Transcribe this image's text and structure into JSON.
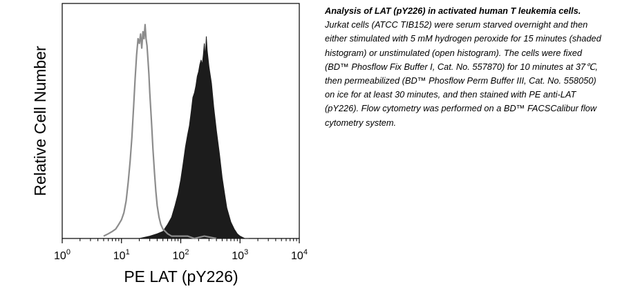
{
  "chart_data": {
    "type": "histogram",
    "title": "",
    "xlabel": "PE LAT (pY226)",
    "ylabel": "Relative Cell Number",
    "x_scale": "log",
    "xlim": [
      1,
      10000
    ],
    "ylim": [
      0,
      1.0
    ],
    "x_ticks": [
      {
        "value": 1,
        "base": "10",
        "exp": "0"
      },
      {
        "value": 10,
        "base": "10",
        "exp": "1"
      },
      {
        "value": 100,
        "base": "10",
        "exp": "2"
      },
      {
        "value": 1000,
        "base": "10",
        "exp": "3"
      },
      {
        "value": 10000,
        "base": "10",
        "exp": "4"
      }
    ],
    "grid": false,
    "legend": "none",
    "series": [
      {
        "style": "open",
        "color": "#8c8c8c",
        "x": [
          5,
          6,
          7,
          8,
          9,
          10,
          11,
          12,
          13,
          14,
          15,
          16,
          17,
          18,
          19,
          20,
          21,
          22,
          23,
          24,
          25,
          26,
          27,
          28,
          29,
          30,
          32,
          34,
          36,
          38,
          40,
          43,
          46,
          50,
          55,
          60,
          70,
          80,
          100,
          130,
          170,
          250,
          400
        ],
        "y": [
          0.01,
          0.02,
          0.03,
          0.04,
          0.06,
          0.08,
          0.11,
          0.16,
          0.24,
          0.33,
          0.43,
          0.56,
          0.68,
          0.78,
          0.85,
          0.83,
          0.87,
          0.81,
          0.88,
          0.85,
          0.91,
          0.85,
          0.82,
          0.76,
          0.7,
          0.62,
          0.5,
          0.38,
          0.28,
          0.2,
          0.14,
          0.09,
          0.06,
          0.04,
          0.03,
          0.02,
          0.01,
          0.01,
          0.01,
          0.01,
          0.0,
          0.01,
          0.0
        ]
      },
      {
        "style": "filled",
        "color": "#1c1c1c",
        "x": [
          20,
          30,
          40,
          50,
          60,
          70,
          80,
          90,
          100,
          110,
          120,
          130,
          140,
          150,
          160,
          170,
          180,
          190,
          200,
          210,
          220,
          230,
          240,
          250,
          260,
          270,
          280,
          300,
          330,
          360,
          400,
          450,
          500,
          550,
          600,
          700,
          800,
          900,
          1000,
          1200,
          1400
        ],
        "y": [
          0.0,
          0.01,
          0.02,
          0.03,
          0.06,
          0.09,
          0.14,
          0.19,
          0.25,
          0.32,
          0.39,
          0.44,
          0.48,
          0.54,
          0.6,
          0.62,
          0.65,
          0.69,
          0.71,
          0.74,
          0.76,
          0.74,
          0.78,
          0.83,
          0.77,
          0.86,
          0.8,
          0.73,
          0.66,
          0.56,
          0.46,
          0.36,
          0.26,
          0.19,
          0.13,
          0.07,
          0.04,
          0.02,
          0.01,
          0.0,
          0.0
        ]
      }
    ]
  },
  "caption": {
    "title": "Analysis of LAT (pY226) in activated human T leukemia cells.",
    "body": "Jurkat cells (ATCC TIB152) were serum starved overnight and then either stimulated with 5 mM hydrogen peroxide for 15 minutes (shaded histogram) or unstimulated (open histogram).  The cells were fixed (BD™ Phosflow Fix Buffer I, Cat. No. 557870) for 10 minutes at 37℃, then permeabilized (BD™ Phosflow Perm Buffer III, Cat. No. 558050) on ice for at least 30 minutes, and then stained with PE anti-LAT (pY226).  Flow cytometry was performed on a BD™ FACSCalibur flow cytometry system."
  }
}
